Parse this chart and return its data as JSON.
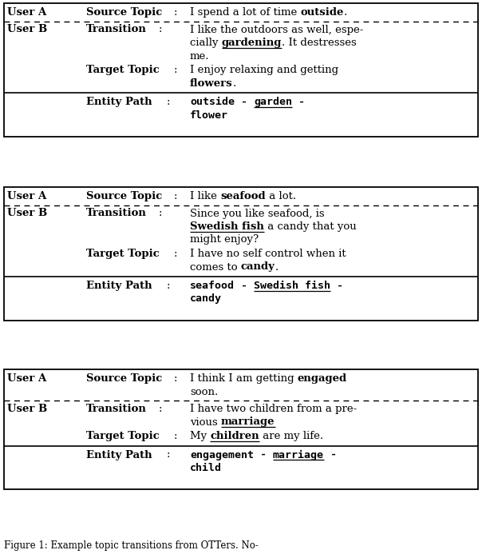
{
  "figsize": [
    6.04,
    6.98
  ],
  "dpi": 100,
  "bg_color": "#ffffff",
  "caption": "Figure 1: Example topic transitions from OTTers. No-",
  "blocks": [
    {
      "source_parts": [
        {
          "t": "I spend a lot of time ",
          "b": false,
          "u": false
        },
        {
          "t": "outside",
          "b": true,
          "u": false
        },
        {
          "t": ".",
          "b": false,
          "u": false
        }
      ],
      "transition_lines": [
        [
          {
            "t": "I like the outdoors as well, espe-",
            "b": false,
            "u": false
          }
        ],
        [
          {
            "t": "cially ",
            "b": false,
            "u": false
          },
          {
            "t": "gardening",
            "b": true,
            "u": true
          },
          {
            "t": ". It destresses",
            "b": false,
            "u": false
          }
        ],
        [
          {
            "t": "me.",
            "b": false,
            "u": false
          }
        ]
      ],
      "target_lines": [
        [
          {
            "t": "I enjoy relaxing and getting",
            "b": false,
            "u": false
          }
        ],
        [
          {
            "t": "flowers",
            "b": true,
            "u": false
          },
          {
            "t": ".",
            "b": false,
            "u": false
          }
        ]
      ],
      "entity_lines": [
        [
          {
            "t": "outside",
            "b": true,
            "u": false,
            "mono": true
          },
          {
            "t": " - ",
            "b": true,
            "u": false,
            "mono": true
          },
          {
            "t": "garden",
            "b": true,
            "u": true,
            "mono": true
          },
          {
            "t": " -",
            "b": true,
            "u": false,
            "mono": true
          }
        ],
        [
          {
            "t": "flower",
            "b": true,
            "u": false,
            "mono": true
          }
        ]
      ]
    },
    {
      "source_parts": [
        {
          "t": "I like ",
          "b": false,
          "u": false
        },
        {
          "t": "seafood",
          "b": true,
          "u": false
        },
        {
          "t": " a lot.",
          "b": false,
          "u": false
        }
      ],
      "transition_lines": [
        [
          {
            "t": "Since you like seafood, is",
            "b": false,
            "u": false
          }
        ],
        [
          {
            "t": "Swedish fish",
            "b": true,
            "u": true
          },
          {
            "t": " a candy that you",
            "b": false,
            "u": false
          }
        ],
        [
          {
            "t": "might enjoy?",
            "b": false,
            "u": false
          }
        ]
      ],
      "target_lines": [
        [
          {
            "t": "I have no self control when it",
            "b": false,
            "u": false
          }
        ],
        [
          {
            "t": "comes to ",
            "b": false,
            "u": false
          },
          {
            "t": "candy",
            "b": true,
            "u": false
          },
          {
            "t": ".",
            "b": false,
            "u": false
          }
        ]
      ],
      "entity_lines": [
        [
          {
            "t": "seafood",
            "b": true,
            "u": false,
            "mono": true
          },
          {
            "t": " - ",
            "b": true,
            "u": false,
            "mono": true
          },
          {
            "t": "Swedish fish",
            "b": true,
            "u": true,
            "mono": true
          },
          {
            "t": " -",
            "b": true,
            "u": false,
            "mono": true
          }
        ],
        [
          {
            "t": "candy",
            "b": true,
            "u": false,
            "mono": true
          }
        ]
      ]
    },
    {
      "source_parts": [
        {
          "t": "I think I am getting ",
          "b": false,
          "u": false
        },
        {
          "t": "engaged",
          "b": true,
          "u": false
        }
      ],
      "source_line2": [
        {
          "t": "soon.",
          "b": false,
          "u": false
        }
      ],
      "transition_lines": [
        [
          {
            "t": "I have two children from a pre-",
            "b": false,
            "u": false
          }
        ],
        [
          {
            "t": "vious ",
            "b": false,
            "u": false
          },
          {
            "t": "marriage",
            "b": true,
            "u": true
          }
        ]
      ],
      "target_lines": [
        [
          {
            "t": "My ",
            "b": false,
            "u": false
          },
          {
            "t": "children",
            "b": true,
            "u": true
          },
          {
            "t": " are my life.",
            "b": false,
            "u": false
          }
        ]
      ],
      "entity_lines": [
        [
          {
            "t": "engagement",
            "b": true,
            "u": false,
            "mono": true
          },
          {
            "t": " - ",
            "b": true,
            "u": false,
            "mono": true
          },
          {
            "t": "marriage",
            "b": true,
            "u": true,
            "mono": true
          },
          {
            "t": " -",
            "b": true,
            "u": false,
            "mono": true
          }
        ],
        [
          {
            "t": "child",
            "b": true,
            "u": false,
            "mono": true
          }
        ]
      ]
    }
  ]
}
